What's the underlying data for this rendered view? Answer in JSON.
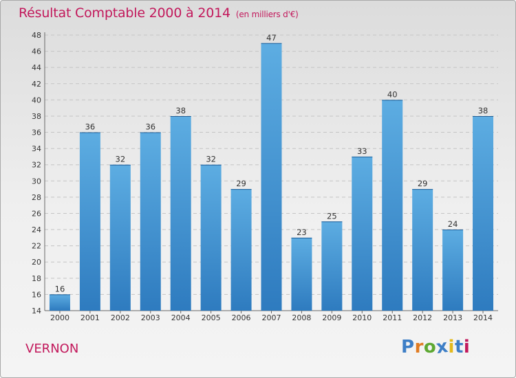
{
  "header": {
    "title": "Résultat Comptable 2000 à 2014",
    "subtitle": "(en milliers d'€)"
  },
  "footer": {
    "commune": "VERNON",
    "logo": [
      "P",
      "r",
      "o",
      "x",
      "i",
      "t",
      "i"
    ]
  },
  "colors": {
    "title": "#c2185b",
    "bar_light": "#5dade2",
    "bar_dark": "#2e7bbf",
    "logo": [
      "#3d7ec6",
      "#e07b22",
      "#5da832",
      "#3d7ec6",
      "#e3b91c",
      "#3d7ec6",
      "#c2185b"
    ]
  },
  "chart_data": {
    "type": "bar",
    "title": "Résultat Comptable 2000 à 2014",
    "subtitle": "(en milliers d'€)",
    "categories": [
      "2000",
      "2001",
      "2002",
      "2003",
      "2004",
      "2005",
      "2006",
      "2007",
      "2008",
      "2009",
      "2010",
      "2011",
      "2012",
      "2013",
      "2014"
    ],
    "values": [
      16,
      36,
      32,
      36,
      38,
      32,
      29,
      47,
      23,
      25,
      33,
      40,
      29,
      24,
      38
    ],
    "ylim": [
      14,
      48
    ],
    "yticks": [
      14,
      16,
      18,
      20,
      22,
      24,
      26,
      28,
      30,
      32,
      34,
      36,
      38,
      40,
      42,
      44,
      46,
      48
    ],
    "xlabel": "",
    "ylabel": "",
    "grid": true
  }
}
